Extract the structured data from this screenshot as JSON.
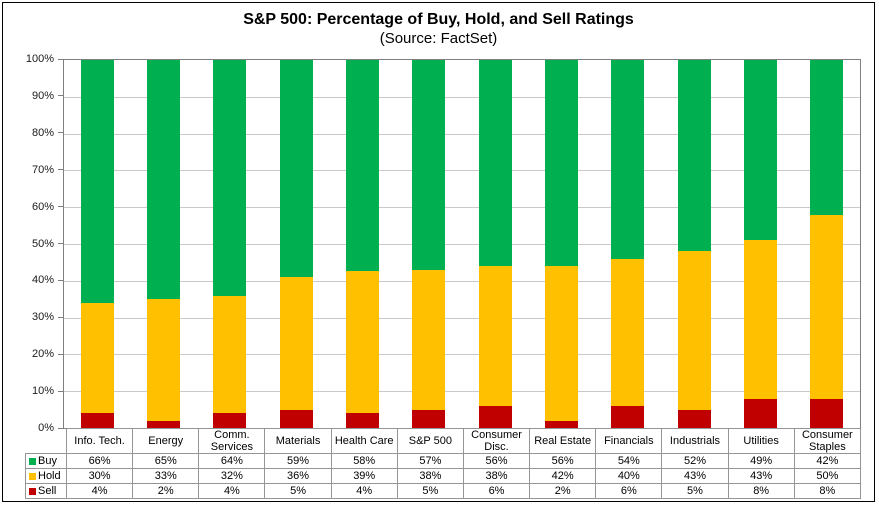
{
  "header": {
    "title": "S&P 500: Percentage of Buy, Hold, and Sell Ratings",
    "subtitle": "(Source: FactSet)"
  },
  "colors": {
    "buy": "#00B050",
    "hold": "#FFC000",
    "sell": "#C00000",
    "gridline": "#C9C9C9",
    "plot_border": "#7f7f7f",
    "table_border": "#959595",
    "frame_border": "#000000"
  },
  "chart_data": {
    "type": "bar",
    "stacked": true,
    "title": "S&P 500: Percentage of Buy, Hold, and Sell Ratings",
    "subtitle": "(Source: FactSet)",
    "categories": [
      "Info. Tech.",
      "Energy",
      "Comm. Services",
      "Materials",
      "Health Care",
      "S&P 500",
      "Consumer Disc.",
      "Real Estate",
      "Financials",
      "Industrials",
      "Utilities",
      "Consumer Staples"
    ],
    "series": [
      {
        "name": "Buy",
        "color": "#00B050",
        "values": [
          66,
          65,
          64,
          59,
          58,
          57,
          56,
          56,
          54,
          52,
          49,
          42
        ]
      },
      {
        "name": "Hold",
        "color": "#FFC000",
        "values": [
          30,
          33,
          32,
          36,
          39,
          38,
          38,
          42,
          40,
          43,
          43,
          50
        ]
      },
      {
        "name": "Sell",
        "color": "#C00000",
        "values": [
          4,
          2,
          4,
          5,
          4,
          5,
          6,
          2,
          6,
          5,
          8,
          8
        ]
      }
    ],
    "xlabel": "",
    "ylabel": "",
    "ylim": [
      0,
      100
    ],
    "ytick_step": 10,
    "yticks": [
      "0%",
      "10%",
      "20%",
      "30%",
      "40%",
      "50%",
      "60%",
      "70%",
      "80%",
      "90%",
      "100%"
    ],
    "value_suffix": "%",
    "grid": true,
    "legend_position": "table-left",
    "segment_order_bottom_to_top": [
      "Sell",
      "Hold",
      "Buy"
    ]
  }
}
